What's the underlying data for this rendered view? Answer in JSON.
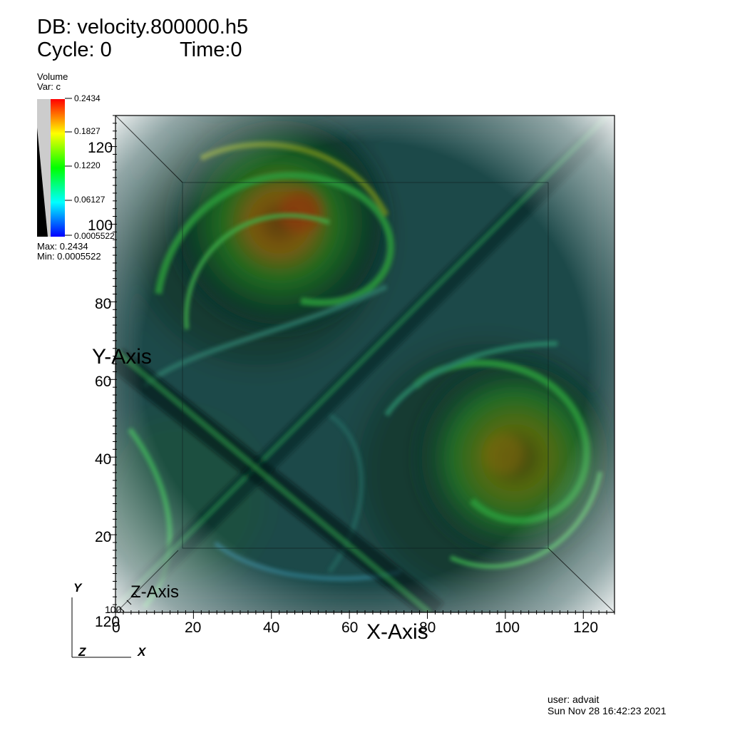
{
  "header": {
    "db_line": "DB: velocity.800000.h5",
    "cycle_label": "Cycle: 0",
    "time_label": "Time:0"
  },
  "legend": {
    "plot_type": "Volume",
    "var_label": "Var: c",
    "ticks": [
      "0.2434",
      "0.1827",
      "0.1220",
      "0.06127",
      "0.0005522"
    ],
    "max_label": "Max:  0.2434",
    "min_label": "Min:  0.0005522",
    "colors": [
      "#ff0000",
      "#ffff00",
      "#00ff00",
      "#00ffff",
      "#0000ff"
    ]
  },
  "axes": {
    "x_title": "X-Axis",
    "y_title": "Y-Axis",
    "z_title": "Z-Axis",
    "x_ticks": [
      "0",
      "20",
      "40",
      "60",
      "80",
      "100",
      "120"
    ],
    "y_ticks": [
      "120",
      "100",
      "80",
      "60",
      "40",
      "20"
    ],
    "z_corner_labels": [
      "100",
      "120"
    ]
  },
  "triad": {
    "y": "Y",
    "z": "Z",
    "x": "X"
  },
  "footer": {
    "user": "user: advait",
    "timestamp": "Sun Nov 28 16:42:23 2021"
  }
}
